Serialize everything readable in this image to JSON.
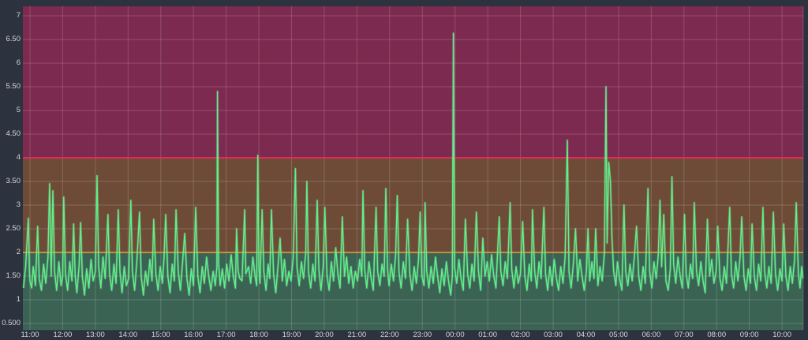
{
  "panel": {
    "type": "grafana-graph-panel"
  },
  "colors": {
    "background": "#2c323e",
    "zone_low": "#3b6354",
    "zone_mid": "#6e4b37",
    "zone_high": "#7d2a50",
    "grid": "rgba(255,255,255,0.17)",
    "plot_border": "rgba(255,255,255,0.10)",
    "threshold_warning": "#e5a33b",
    "threshold_critical": "#f0295c",
    "series_line": "#5cf287",
    "series_glow": "#aef7c6",
    "tick_text": "#d4d6d8"
  },
  "chart_data": {
    "type": "line",
    "title": "",
    "xlabel": "",
    "ylabel": "",
    "legend": "none",
    "grid": "on",
    "y_axis": {
      "tick_labels": [
        "7",
        "6.50",
        "6",
        "5.50",
        "5",
        "4.50",
        "4",
        "3.50",
        "3",
        "2.50",
        "2",
        "1.50",
        "1",
        "0.500"
      ],
      "tick_values": [
        7,
        6.5,
        6,
        5.5,
        5,
        4.5,
        4,
        3.5,
        3,
        2.5,
        2,
        1.5,
        1,
        0.5
      ],
      "range": [
        0.37,
        7.17
      ]
    },
    "x_axis": {
      "tick_labels": [
        "11:00",
        "12:00",
        "13:00",
        "14:00",
        "15:00",
        "16:00",
        "17:00",
        "18:00",
        "19:00",
        "20:00",
        "21:00",
        "22:00",
        "23:00",
        "00:00",
        "01:00",
        "02:00",
        "03:00",
        "04:00",
        "05:00",
        "06:00",
        "07:00",
        "08:00",
        "09:00",
        "10:00"
      ],
      "minutes_per_tick": 60
    },
    "thresholds": {
      "warning_value": 2,
      "critical_value": 4
    },
    "points": [
      [
        -12,
        1.25
      ],
      [
        -8,
        1.7
      ],
      [
        -5,
        2.3
      ],
      [
        -3,
        2.72
      ],
      [
        -1,
        1.6
      ],
      [
        0,
        1.4
      ],
      [
        3,
        1.25
      ],
      [
        6,
        1.7
      ],
      [
        10,
        1.3
      ],
      [
        14,
        2.55
      ],
      [
        17,
        1.45
      ],
      [
        21,
        1.2
      ],
      [
        25,
        1.75
      ],
      [
        29,
        1.35
      ],
      [
        33,
        1.9
      ],
      [
        36,
        3.45
      ],
      [
        39,
        1.5
      ],
      [
        42,
        3.3
      ],
      [
        45,
        1.6
      ],
      [
        49,
        1.2
      ],
      [
        53,
        1.8
      ],
      [
        57,
        1.3
      ],
      [
        60,
        1.5
      ],
      [
        62,
        3.17
      ],
      [
        65,
        1.55
      ],
      [
        69,
        1.2
      ],
      [
        73,
        1.8
      ],
      [
        77,
        1.4
      ],
      [
        80,
        2.6
      ],
      [
        83,
        1.5
      ],
      [
        86,
        1.15
      ],
      [
        90,
        1.7
      ],
      [
        93,
        2.63
      ],
      [
        96,
        1.5
      ],
      [
        100,
        1.1
      ],
      [
        104,
        1.65
      ],
      [
        108,
        1.25
      ],
      [
        112,
        1.85
      ],
      [
        116,
        1.4
      ],
      [
        120,
        1.6
      ],
      [
        123,
        3.62
      ],
      [
        126,
        1.7
      ],
      [
        130,
        1.25
      ],
      [
        134,
        1.9
      ],
      [
        138,
        1.45
      ],
      [
        143,
        2.8
      ],
      [
        146,
        1.55
      ],
      [
        150,
        1.2
      ],
      [
        154,
        1.75
      ],
      [
        158,
        1.35
      ],
      [
        162,
        2.9
      ],
      [
        165,
        1.6
      ],
      [
        169,
        1.15
      ],
      [
        173,
        1.7
      ],
      [
        177,
        1.3
      ],
      [
        181,
        1.45
      ],
      [
        185,
        3.1
      ],
      [
        188,
        1.6
      ],
      [
        192,
        1.2
      ],
      [
        196,
        1.8
      ],
      [
        201,
        2.85
      ],
      [
        204,
        1.5
      ],
      [
        208,
        1.1
      ],
      [
        212,
        1.6
      ],
      [
        216,
        1.3
      ],
      [
        220,
        1.85
      ],
      [
        224,
        1.4
      ],
      [
        227,
        2.7
      ],
      [
        231,
        1.55
      ],
      [
        235,
        1.2
      ],
      [
        239,
        1.7
      ],
      [
        243,
        1.35
      ],
      [
        246,
        1.9
      ],
      [
        249,
        2.8
      ],
      [
        253,
        1.5
      ],
      [
        257,
        1.15
      ],
      [
        261,
        1.75
      ],
      [
        265,
        1.4
      ],
      [
        268,
        2.9
      ],
      [
        272,
        1.6
      ],
      [
        276,
        1.2
      ],
      [
        280,
        1.8
      ],
      [
        284,
        2.4
      ],
      [
        288,
        1.45
      ],
      [
        292,
        1.1
      ],
      [
        296,
        1.65
      ],
      [
        300,
        1.3
      ],
      [
        304,
        2.95
      ],
      [
        308,
        1.5
      ],
      [
        312,
        1.15
      ],
      [
        316,
        1.7
      ],
      [
        320,
        1.35
      ],
      [
        324,
        1.9
      ],
      [
        328,
        1.5
      ],
      [
        332,
        1.2
      ],
      [
        336,
        1.6
      ],
      [
        340,
        1.3
      ],
      [
        343,
        1.7
      ],
      [
        344,
        5.4
      ],
      [
        346,
        1.8
      ],
      [
        349,
        1.3
      ],
      [
        353,
        1.65
      ],
      [
        357,
        1.25
      ],
      [
        361,
        1.75
      ],
      [
        365,
        1.4
      ],
      [
        369,
        1.95
      ],
      [
        373,
        1.5
      ],
      [
        377,
        1.25
      ],
      [
        379,
        2.5
      ],
      [
        382,
        1.6
      ],
      [
        385,
        1.45
      ],
      [
        389,
        1.4
      ],
      [
        394,
        2.9
      ],
      [
        396,
        1.55
      ],
      [
        401,
        1.7
      ],
      [
        405,
        1.35
      ],
      [
        409,
        1.9
      ],
      [
        413,
        1.5
      ],
      [
        416,
        1.3
      ],
      [
        418,
        4.05
      ],
      [
        420,
        1.7
      ],
      [
        422,
        1.35
      ],
      [
        426,
        2.9
      ],
      [
        429,
        1.6
      ],
      [
        433,
        1.2
      ],
      [
        437,
        1.75
      ],
      [
        440,
        1.45
      ],
      [
        443,
        2.9
      ],
      [
        447,
        1.55
      ],
      [
        451,
        1.15
      ],
      [
        455,
        1.7
      ],
      [
        459,
        2.3
      ],
      [
        463,
        1.4
      ],
      [
        467,
        1.85
      ],
      [
        471,
        1.3
      ],
      [
        475,
        1.6
      ],
      [
        479,
        1.4
      ],
      [
        483,
        1.9
      ],
      [
        487,
        3.77
      ],
      [
        490,
        1.7
      ],
      [
        494,
        1.3
      ],
      [
        498,
        1.8
      ],
      [
        502,
        1.45
      ],
      [
        506,
        2.0
      ],
      [
        508,
        3.5
      ],
      [
        511,
        1.6
      ],
      [
        515,
        1.25
      ],
      [
        519,
        1.75
      ],
      [
        523,
        1.4
      ],
      [
        527,
        3.1
      ],
      [
        530,
        1.65
      ],
      [
        534,
        1.2
      ],
      [
        538,
        1.7
      ],
      [
        541,
        2.95
      ],
      [
        545,
        1.5
      ],
      [
        549,
        1.2
      ],
      [
        553,
        1.8
      ],
      [
        557,
        1.4
      ],
      [
        561,
        2.1
      ],
      [
        565,
        1.55
      ],
      [
        569,
        1.25
      ],
      [
        573,
        2.75
      ],
      [
        577,
        1.5
      ],
      [
        581,
        1.9
      ],
      [
        585,
        1.35
      ],
      [
        589,
        1.7
      ],
      [
        593,
        1.25
      ],
      [
        597,
        1.6
      ],
      [
        601,
        1.4
      ],
      [
        605,
        1.85
      ],
      [
        609,
        1.5
      ],
      [
        611,
        3.3
      ],
      [
        614,
        1.65
      ],
      [
        618,
        1.25
      ],
      [
        622,
        1.8
      ],
      [
        626,
        1.45
      ],
      [
        630,
        1.2
      ],
      [
        635,
        2.95
      ],
      [
        638,
        1.6
      ],
      [
        642,
        1.3
      ],
      [
        646,
        1.75
      ],
      [
        650,
        1.5
      ],
      [
        653,
        3.35
      ],
      [
        656,
        1.65
      ],
      [
        659,
        1.3
      ],
      [
        663,
        1.75
      ],
      [
        667,
        1.4
      ],
      [
        671,
        1.95
      ],
      [
        674,
        3.2
      ],
      [
        677,
        1.6
      ],
      [
        681,
        1.25
      ],
      [
        685,
        1.8
      ],
      [
        689,
        1.45
      ],
      [
        693,
        2.7
      ],
      [
        697,
        1.55
      ],
      [
        701,
        1.2
      ],
      [
        705,
        1.7
      ],
      [
        709,
        1.35
      ],
      [
        713,
        1.85
      ],
      [
        716,
        2.85
      ],
      [
        719,
        1.5
      ],
      [
        723,
        1.3
      ],
      [
        725,
        3.05
      ],
      [
        728,
        1.6
      ],
      [
        732,
        1.25
      ],
      [
        736,
        1.7
      ],
      [
        740,
        1.35
      ],
      [
        744,
        1.9
      ],
      [
        748,
        1.5
      ],
      [
        752,
        1.15
      ],
      [
        756,
        1.65
      ],
      [
        760,
        1.3
      ],
      [
        764,
        1.8
      ],
      [
        768,
        1.4
      ],
      [
        772,
        1.1
      ],
      [
        775,
        1.5
      ],
      [
        777,
        6.63
      ],
      [
        779,
        1.7
      ],
      [
        783,
        1.35
      ],
      [
        787,
        1.85
      ],
      [
        791,
        1.45
      ],
      [
        795,
        1.2
      ],
      [
        799,
        2.7
      ],
      [
        803,
        1.55
      ],
      [
        807,
        1.25
      ],
      [
        811,
        1.75
      ],
      [
        815,
        1.4
      ],
      [
        819,
        2.85
      ],
      [
        823,
        1.6
      ],
      [
        827,
        1.2
      ],
      [
        831,
        2.3
      ],
      [
        835,
        1.5
      ],
      [
        839,
        1.8
      ],
      [
        843,
        1.4
      ],
      [
        847,
        1.95
      ],
      [
        851,
        1.5
      ],
      [
        855,
        1.25
      ],
      [
        861,
        2.75
      ],
      [
        864,
        1.6
      ],
      [
        868,
        1.3
      ],
      [
        872,
        1.8
      ],
      [
        876,
        1.45
      ],
      [
        881,
        3.05
      ],
      [
        884,
        1.65
      ],
      [
        888,
        1.25
      ],
      [
        892,
        1.7
      ],
      [
        896,
        1.35
      ],
      [
        900,
        1.55
      ],
      [
        904,
        2.65
      ],
      [
        908,
        1.5
      ],
      [
        912,
        1.2
      ],
      [
        916,
        1.75
      ],
      [
        920,
        1.4
      ],
      [
        922,
        2.9
      ],
      [
        926,
        1.6
      ],
      [
        930,
        1.25
      ],
      [
        934,
        1.8
      ],
      [
        938,
        1.45
      ],
      [
        943,
        2.95
      ],
      [
        946,
        1.55
      ],
      [
        950,
        1.2
      ],
      [
        954,
        1.7
      ],
      [
        958,
        1.3
      ],
      [
        962,
        1.85
      ],
      [
        966,
        1.45
      ],
      [
        970,
        1.2
      ],
      [
        974,
        1.7
      ],
      [
        978,
        1.35
      ],
      [
        982,
        1.9
      ],
      [
        986,
        4.37
      ],
      [
        989,
        1.6
      ],
      [
        993,
        1.25
      ],
      [
        997,
        1.75
      ],
      [
        1001,
        2.5
      ],
      [
        1005,
        1.4
      ],
      [
        1009,
        1.85
      ],
      [
        1013,
        1.5
      ],
      [
        1017,
        1.2
      ],
      [
        1021,
        1.6
      ],
      [
        1024,
        2.5
      ],
      [
        1027,
        1.4
      ],
      [
        1031,
        1.8
      ],
      [
        1035,
        1.45
      ],
      [
        1038,
        2.5
      ],
      [
        1042,
        1.3
      ],
      [
        1046,
        1.7
      ],
      [
        1050,
        1.4
      ],
      [
        1054,
        2.0
      ],
      [
        1057,
        5.5
      ],
      [
        1059,
        2.2
      ],
      [
        1062,
        3.9
      ],
      [
        1065,
        3.5
      ],
      [
        1068,
        2.3
      ],
      [
        1071,
        1.6
      ],
      [
        1075,
        1.3
      ],
      [
        1078,
        1.8
      ],
      [
        1082,
        1.45
      ],
      [
        1086,
        1.2
      ],
      [
        1090,
        3.0
      ],
      [
        1093,
        1.6
      ],
      [
        1097,
        1.3
      ],
      [
        1101,
        1.75
      ],
      [
        1105,
        1.4
      ],
      [
        1109,
        1.9
      ],
      [
        1113,
        2.55
      ],
      [
        1117,
        1.5
      ],
      [
        1121,
        1.2
      ],
      [
        1125,
        1.7
      ],
      [
        1129,
        1.35
      ],
      [
        1134,
        3.35
      ],
      [
        1137,
        1.6
      ],
      [
        1141,
        1.25
      ],
      [
        1145,
        1.8
      ],
      [
        1149,
        1.45
      ],
      [
        1153,
        1.95
      ],
      [
        1156,
        3.1
      ],
      [
        1159,
        1.7
      ],
      [
        1163,
        2.8
      ],
      [
        1167,
        1.4
      ],
      [
        1171,
        1.2
      ],
      [
        1175,
        1.65
      ],
      [
        1178,
        3.6
      ],
      [
        1181,
        1.75
      ],
      [
        1185,
        1.35
      ],
      [
        1189,
        1.9
      ],
      [
        1193,
        1.5
      ],
      [
        1197,
        1.25
      ],
      [
        1201,
        2.8
      ],
      [
        1204,
        1.55
      ],
      [
        1208,
        1.25
      ],
      [
        1212,
        1.75
      ],
      [
        1216,
        1.45
      ],
      [
        1219,
        3.05
      ],
      [
        1223,
        1.6
      ],
      [
        1227,
        1.3
      ],
      [
        1231,
        1.8
      ],
      [
        1235,
        1.4
      ],
      [
        1239,
        1.15
      ],
      [
        1243,
        2.7
      ],
      [
        1247,
        1.5
      ],
      [
        1251,
        1.85
      ],
      [
        1255,
        1.35
      ],
      [
        1259,
        1.6
      ],
      [
        1262,
        2.55
      ],
      [
        1266,
        1.45
      ],
      [
        1270,
        1.2
      ],
      [
        1274,
        1.7
      ],
      [
        1278,
        1.35
      ],
      [
        1284,
        2.95
      ],
      [
        1287,
        1.55
      ],
      [
        1291,
        1.25
      ],
      [
        1295,
        1.8
      ],
      [
        1299,
        1.4
      ],
      [
        1303,
        1.9
      ],
      [
        1306,
        2.75
      ],
      [
        1310,
        1.5
      ],
      [
        1314,
        1.2
      ],
      [
        1318,
        1.65
      ],
      [
        1322,
        1.35
      ],
      [
        1325,
        2.6
      ],
      [
        1329,
        1.5
      ],
      [
        1333,
        1.2
      ],
      [
        1337,
        1.75
      ],
      [
        1341,
        1.4
      ],
      [
        1345,
        2.95
      ],
      [
        1348,
        1.6
      ],
      [
        1352,
        1.25
      ],
      [
        1356,
        1.7
      ],
      [
        1360,
        1.35
      ],
      [
        1364,
        2.85
      ],
      [
        1368,
        1.55
      ],
      [
        1372,
        1.2
      ],
      [
        1376,
        1.65
      ],
      [
        1380,
        1.4
      ],
      [
        1383,
        2.6
      ],
      [
        1387,
        1.5
      ],
      [
        1391,
        1.2
      ],
      [
        1395,
        1.7
      ],
      [
        1399,
        1.35
      ],
      [
        1403,
        1.85
      ],
      [
        1406,
        3.05
      ],
      [
        1410,
        1.55
      ],
      [
        1413,
        1.25
      ],
      [
        1416,
        1.7
      ],
      [
        1418,
        1.45
      ]
    ]
  }
}
